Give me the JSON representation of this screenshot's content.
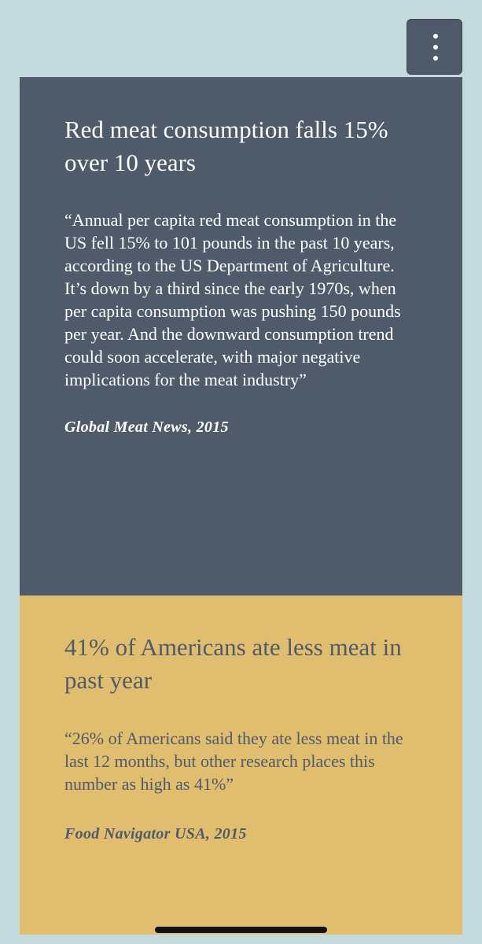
{
  "menu": {
    "icon": "more-vertical-icon"
  },
  "cards": [
    {
      "headline": "Red meat consumption falls 15% over 10 years",
      "quote": "“Annual per capita red meat consumption in the US fell 15% to 101 pounds in the past 10 years, according to the US Department of Agriculture. It’s down by a third since the early 1970s, when per capita consumption was pushing 150 pounds per year. And the downward consumption trend could soon accelerate, with major negative implications for the meat industry”",
      "source": "Global Meat News, 2015",
      "background": "#4f5a6b",
      "text_color": "#ffffff"
    },
    {
      "headline": "41% of Americans ate less meat in past year",
      "quote": "“26% of Americans said they ate less meat in the last 12 months, but other research places this number as high as 41%”",
      "source": "Food Navigator USA, 2015",
      "background": "#e0bd6f",
      "text_color": "#4f5a6b"
    }
  ],
  "colors": {
    "page_background": "#c5dadd",
    "menu_button": "#4e5969"
  }
}
